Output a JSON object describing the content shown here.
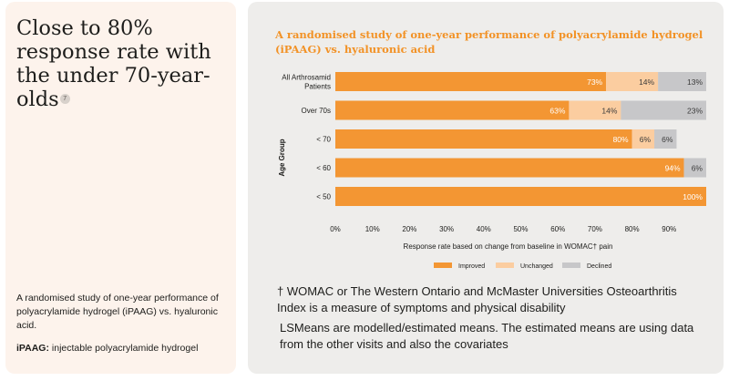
{
  "left": {
    "headline": "Close to 80% response rate with the under 70-year-olds",
    "ref": "7",
    "description": "A randomised study of one-year performance of polyacrylamide hydrogel (iPAAG) vs. hyaluronic acid.",
    "ipaag_label": "iPAAG:",
    "ipaag_text": " injectable polyacrylamide hydrogel"
  },
  "chart_data": {
    "type": "bar",
    "orientation": "horizontal",
    "stacked": true,
    "title": "A randomised study of one-year performance of polyacrylamide hydrogel (iPAAG) vs. hyaluronic acid",
    "xlabel": "Response rate based on change from baseline in WOMAC† pain",
    "ylabel": "Age Group",
    "xlim": [
      0,
      100
    ],
    "x_ticks": [
      "0%",
      "10%",
      "20%",
      "30%",
      "40%",
      "50%",
      "60%",
      "70%",
      "80%",
      "90%"
    ],
    "categories": [
      [
        "All Arthrosamid",
        "Patients"
      ],
      [
        "Over 70s"
      ],
      [
        "< 70"
      ],
      [
        "< 60"
      ],
      [
        "< 50"
      ]
    ],
    "series": [
      {
        "name": "Improved",
        "color": "#f39633",
        "values": [
          73,
          63,
          80,
          94,
          100
        ],
        "labels": [
          "73%",
          "63%",
          "80%",
          "94%",
          "100%"
        ]
      },
      {
        "name": "Unchanged",
        "color": "#fbcda0",
        "values": [
          14,
          14,
          6,
          0,
          0
        ],
        "labels": [
          "14%",
          "14%",
          "6%",
          "",
          ""
        ]
      },
      {
        "name": "Declined",
        "color": "#c7c7c9",
        "values": [
          13,
          23,
          6,
          6,
          0
        ],
        "labels": [
          "13%",
          "23%",
          "6%",
          "6%",
          ""
        ]
      }
    ],
    "legend_position": "bottom"
  },
  "footnote": {
    "womac": "† WOMAC or The Western Ontario and McMaster Universities Osteoarthritis Index is a measure of symptoms and physical disability",
    "lsmeans": "LSMeans are modelled/estimated means. The estimated means are using data from the other visits and also the covariates"
  }
}
